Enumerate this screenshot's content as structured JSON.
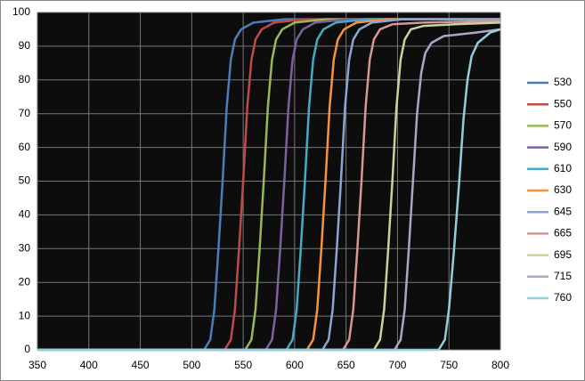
{
  "chart_data": {
    "type": "line",
    "xlim": [
      350,
      800
    ],
    "xticks": [
      350,
      400,
      450,
      500,
      550,
      600,
      650,
      700,
      750,
      800
    ],
    "ylim": [
      0,
      100
    ],
    "yticks": [
      0,
      10,
      20,
      30,
      40,
      50,
      60,
      70,
      80,
      90,
      100
    ],
    "grid": true,
    "legend": "right",
    "background": "#0d0d0d",
    "series": [
      {
        "name": "530",
        "color": "#4a7ebb",
        "x": [
          350,
          512,
          518,
          522,
          526,
          530,
          534,
          538,
          542,
          548,
          560,
          590,
          800
        ],
        "values": [
          0,
          0,
          3,
          12,
          30,
          50,
          72,
          86,
          92,
          95,
          97,
          98,
          98
        ]
      },
      {
        "name": "550",
        "color": "#be4b48",
        "x": [
          350,
          532,
          538,
          542,
          546,
          550,
          554,
          558,
          562,
          568,
          580,
          610,
          800
        ],
        "values": [
          0,
          0,
          3,
          12,
          30,
          50,
          72,
          86,
          92,
          95,
          97,
          98,
          98
        ]
      },
      {
        "name": "570",
        "color": "#98b954",
        "x": [
          350,
          552,
          558,
          562,
          566,
          570,
          574,
          578,
          582,
          588,
          600,
          630,
          800
        ],
        "values": [
          0,
          0,
          3,
          12,
          30,
          50,
          72,
          86,
          92,
          95,
          97,
          98,
          98
        ]
      },
      {
        "name": "590",
        "color": "#7d60a0",
        "x": [
          350,
          572,
          578,
          582,
          586,
          590,
          594,
          598,
          602,
          608,
          620,
          650,
          800
        ],
        "values": [
          0,
          0,
          3,
          12,
          30,
          50,
          72,
          86,
          92,
          95,
          97,
          98,
          98
        ]
      },
      {
        "name": "610",
        "color": "#46aac5",
        "x": [
          350,
          592,
          598,
          602,
          606,
          610,
          614,
          618,
          622,
          628,
          640,
          670,
          800
        ],
        "values": [
          0,
          0,
          3,
          12,
          30,
          50,
          72,
          86,
          92,
          95,
          97,
          98,
          98
        ]
      },
      {
        "name": "630",
        "color": "#f69240",
        "x": [
          350,
          612,
          618,
          622,
          626,
          630,
          634,
          638,
          642,
          648,
          660,
          690,
          800
        ],
        "values": [
          0,
          0,
          3,
          12,
          30,
          50,
          72,
          86,
          92,
          95,
          97,
          98,
          98
        ]
      },
      {
        "name": "645",
        "color": "#8ba6d0",
        "x": [
          350,
          627,
          633,
          637,
          641,
          645,
          649,
          653,
          657,
          663,
          675,
          705,
          800
        ],
        "values": [
          0,
          0,
          3,
          12,
          30,
          50,
          72,
          86,
          92,
          95,
          97,
          98,
          98
        ]
      },
      {
        "name": "665",
        "color": "#d99694",
        "x": [
          350,
          647,
          653,
          657,
          661,
          665,
          669,
          673,
          677,
          683,
          695,
          725,
          800
        ],
        "values": [
          0,
          0,
          3,
          12,
          30,
          50,
          72,
          86,
          92,
          95,
          96.5,
          97,
          97.5
        ]
      },
      {
        "name": "695",
        "color": "#c3d69b",
        "x": [
          350,
          677,
          683,
          687,
          691,
          695,
          699,
          703,
          707,
          713,
          725,
          755,
          800
        ],
        "values": [
          0,
          0,
          3,
          12,
          30,
          50,
          72,
          86,
          92,
          95,
          96,
          96.5,
          97
        ]
      },
      {
        "name": "715",
        "color": "#b3a2c7",
        "x": [
          350,
          697,
          703,
          707,
          711,
          715,
          719,
          723,
          727,
          733,
          745,
          775,
          800
        ],
        "values": [
          0,
          0,
          3,
          12,
          30,
          50,
          70,
          82,
          88,
          91,
          93,
          94,
          95
        ]
      },
      {
        "name": "760",
        "color": "#93cddd",
        "x": [
          350,
          740,
          746,
          750,
          755,
          760,
          764,
          768,
          772,
          778,
          790,
          800
        ],
        "values": [
          0,
          0,
          3,
          12,
          30,
          50,
          68,
          80,
          87,
          91,
          94,
          95
        ]
      }
    ]
  }
}
